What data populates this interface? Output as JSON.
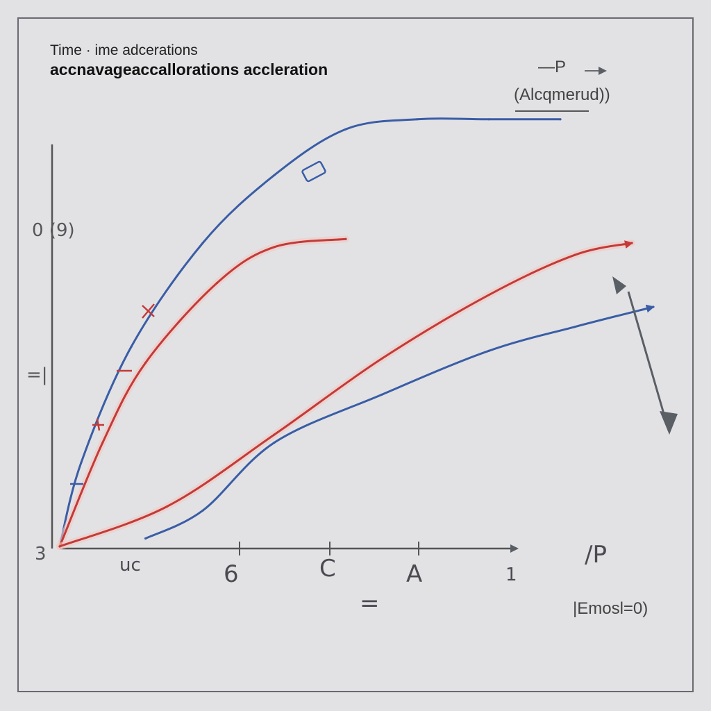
{
  "chart_data": {
    "type": "line",
    "title_line1": "Time · ime adcerations",
    "title_line2": "accnavageaccallorations accleration",
    "legend_label_p": "—P",
    "legend_label_paren": "(Alcqmerud))",
    "x_ticks": [
      "uc",
      "6",
      "C",
      "A",
      "1"
    ],
    "x_tick_end": "∕P",
    "x_axis_sublabel": "=",
    "x_axis_unit": "|Emosl=0)",
    "y_ticks": [
      "0 (9)",
      "=|",
      "3"
    ],
    "series": [
      {
        "color": "#3a5da5",
        "points": [
          [
            0.0,
            0.0
          ],
          [
            0.3,
            2.1
          ],
          [
            1.0,
            5.0
          ],
          [
            2.0,
            7.6
          ],
          [
            3.0,
            9.3
          ],
          [
            4.0,
            10.45
          ],
          [
            5.0,
            10.7
          ],
          [
            6.0,
            10.7
          ],
          [
            7.0,
            10.7
          ]
        ]
      },
      {
        "color": "#c43a38",
        "points": [
          [
            0.0,
            0.0
          ],
          [
            0.6,
            2.6
          ],
          [
            1.2,
            4.6
          ],
          [
            2.2,
            6.6
          ],
          [
            3.0,
            7.5
          ],
          [
            4.0,
            7.7
          ]
        ]
      },
      {
        "color": "#c43a38",
        "points": [
          [
            0.0,
            0.0
          ],
          [
            1.5,
            1.0
          ],
          [
            3.0,
            2.8
          ],
          [
            4.5,
            4.7
          ],
          [
            6.0,
            6.3
          ],
          [
            7.2,
            7.3
          ],
          [
            8.0,
            7.6
          ]
        ]
      },
      {
        "color": "#3a5da5",
        "points": [
          [
            1.2,
            0.2
          ],
          [
            2.0,
            0.9
          ],
          [
            3.0,
            2.6
          ],
          [
            4.5,
            3.8
          ],
          [
            6.0,
            4.9
          ],
          [
            7.2,
            5.5
          ],
          [
            8.3,
            6.0
          ]
        ]
      }
    ],
    "grid": false
  }
}
